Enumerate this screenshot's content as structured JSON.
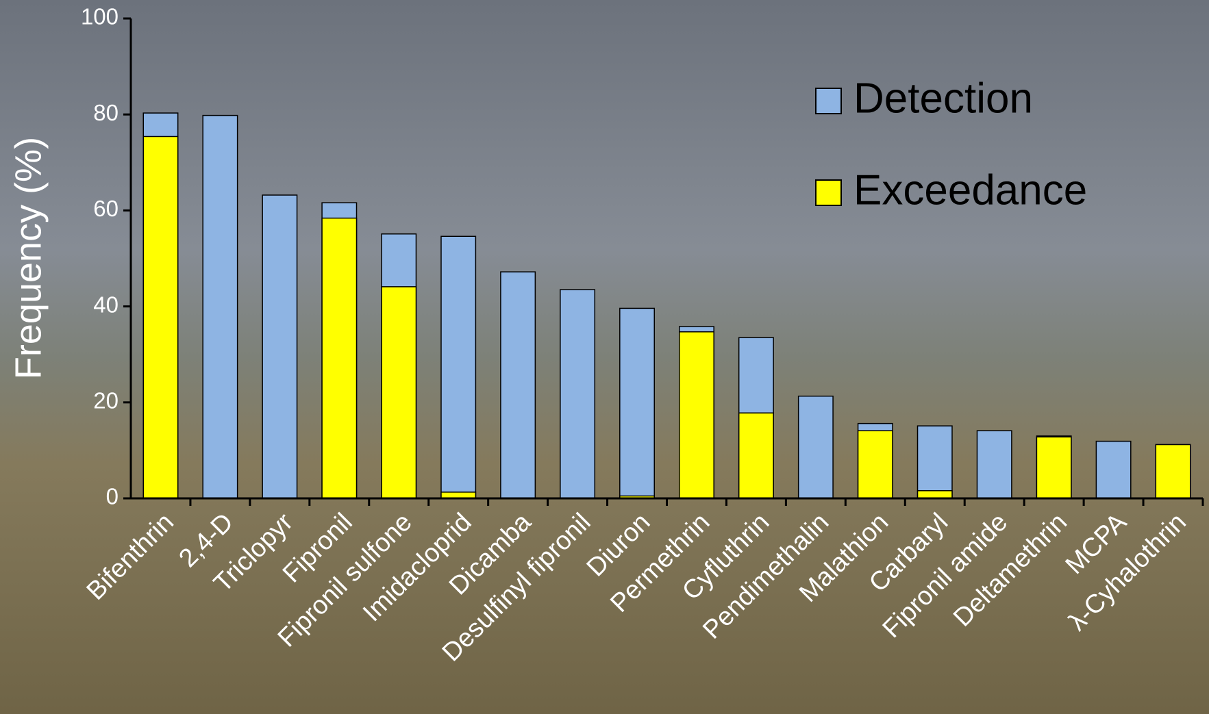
{
  "chart_data": {
    "type": "bar",
    "overlay": true,
    "y_label": "Frequency (%)",
    "categories": [
      "Bifenthrin",
      "2,4-D",
      "Triclopyr",
      "Fipronil",
      "Fipronil sulfone",
      "Imidacloprid",
      "Dicamba",
      "Desulfinyl fipronil",
      "Diuron",
      "Permethrin",
      "Cyfluthrin",
      "Pendimethalin",
      "Malathion",
      "Carbaryl",
      "Fipronil amide",
      "Deltamethrin",
      "MCPA",
      "λ-Cyhalothrin"
    ],
    "series": [
      {
        "name": "Detection",
        "color": "#8eb4e3",
        "values": [
          80.3,
          79.8,
          63.2,
          61.6,
          55.1,
          54.6,
          47.2,
          43.5,
          39.6,
          35.8,
          33.5,
          21.3,
          15.6,
          15.1,
          14.1,
          13.0,
          11.9,
          11.2
        ]
      },
      {
        "name": "Exceedance",
        "color": "#ffff00",
        "values": [
          75.4,
          0,
          0,
          58.4,
          44.1,
          1.3,
          0,
          0,
          0.5,
          34.7,
          17.8,
          0,
          14.1,
          1.6,
          0,
          12.8,
          0,
          11.2
        ]
      }
    ],
    "ylim": [
      0,
      100
    ],
    "yticks": [
      0,
      20,
      40,
      60,
      80,
      100
    ],
    "legend": "top-right"
  }
}
